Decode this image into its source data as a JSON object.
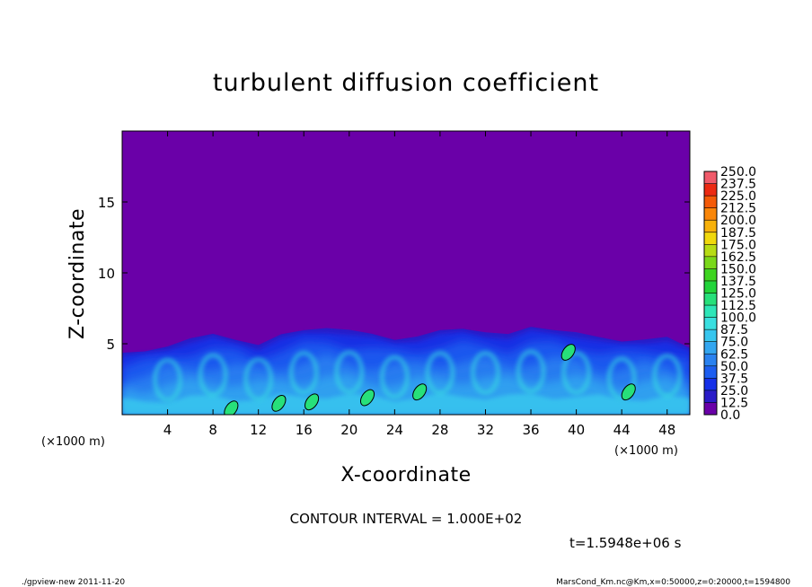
{
  "chart_data": {
    "type": "heatmap",
    "title": "turbulent diffusion coefficient",
    "xlabel": "X-coordinate",
    "ylabel": "Z-coordinate",
    "x_unit": "(×1000 m)",
    "y_unit": "(×1000 m)",
    "xlim": [
      0,
      50
    ],
    "ylim": [
      0,
      20
    ],
    "x_ticks": [
      4,
      8,
      12,
      16,
      20,
      24,
      28,
      32,
      36,
      40,
      44,
      48
    ],
    "y_ticks": [
      5,
      10,
      15
    ],
    "background_value": 0.0,
    "colorbar": {
      "levels": [
        0.0,
        12.5,
        25.0,
        37.5,
        50.0,
        62.5,
        75.0,
        87.5,
        100.0,
        112.5,
        125.0,
        137.5,
        150.0,
        162.5,
        175.0,
        187.5,
        200.0,
        212.5,
        225.0,
        237.5,
        250.0
      ],
      "level_labels": [
        "0.0",
        "12.5",
        "25.0",
        "37.5",
        "50.0",
        "62.5",
        "75.0",
        "87.5",
        "100.0",
        "112.5",
        "125.0",
        "137.5",
        "150.0",
        "162.5",
        "175.0",
        "187.5",
        "200.0",
        "212.5",
        "225.0",
        "237.5",
        "250.0"
      ],
      "colors": [
        "#6a00a8",
        "#2a1cc8",
        "#1530e8",
        "#1d5ef0",
        "#2a82f0",
        "#33a6f0",
        "#37c6ee",
        "#39dfe0",
        "#2ee6b8",
        "#27e07a",
        "#22d43a",
        "#3ed420",
        "#7ad81a",
        "#b7dc14",
        "#f0d80c",
        "#f7b10a",
        "#f98608",
        "#f45a08",
        "#ec2a12",
        "#f05a6a"
      ]
    },
    "boundary_layer_top": [
      {
        "x": 0,
        "z": 4.3
      },
      {
        "x": 2,
        "z": 4.4
      },
      {
        "x": 4,
        "z": 4.9
      },
      {
        "x": 6,
        "z": 5.4
      },
      {
        "x": 8,
        "z": 5.6
      },
      {
        "x": 10,
        "z": 5.3
      },
      {
        "x": 12,
        "z": 5.0
      },
      {
        "x": 14,
        "z": 5.6
      },
      {
        "x": 16,
        "z": 5.9
      },
      {
        "x": 18,
        "z": 6.2
      },
      {
        "x": 20,
        "z": 6.0
      },
      {
        "x": 22,
        "z": 5.6
      },
      {
        "x": 24,
        "z": 5.3
      },
      {
        "x": 26,
        "z": 5.6
      },
      {
        "x": 28,
        "z": 5.9
      },
      {
        "x": 30,
        "z": 6.0
      },
      {
        "x": 32,
        "z": 5.9
      },
      {
        "x": 34,
        "z": 5.7
      },
      {
        "x": 36,
        "z": 6.1
      },
      {
        "x": 38,
        "z": 6.0
      },
      {
        "x": 40,
        "z": 5.9
      },
      {
        "x": 42,
        "z": 5.4
      },
      {
        "x": 44,
        "z": 5.1
      },
      {
        "x": 46,
        "z": 5.4
      },
      {
        "x": 48,
        "z": 5.5
      },
      {
        "x": 50,
        "z": 4.6
      }
    ],
    "high_value_patches": [
      {
        "x": 21.6,
        "z": 1.2,
        "value": 100
      },
      {
        "x": 26.2,
        "z": 1.6,
        "value": 100
      },
      {
        "x": 39.3,
        "z": 4.4,
        "value": 100
      },
      {
        "x": 16.7,
        "z": 0.9,
        "value": 100
      },
      {
        "x": 13.8,
        "z": 0.8,
        "value": 100
      },
      {
        "x": 9.6,
        "z": 0.4,
        "value": 100
      },
      {
        "x": 44.6,
        "z": 1.6,
        "value": 100
      }
    ],
    "contour_interval": "1.000E+02",
    "time": "1.5948e+06"
  },
  "annotations": {
    "contour_interval_text": "CONTOUR INTERVAL = 1.000E+02",
    "time_text": "t=1.5948e+06 s",
    "footer_left": "./gpview-new   2011-11-20",
    "footer_right": "MarsCond_Km.nc@Km,x=0:50000,z=0:20000,t=1594800"
  }
}
